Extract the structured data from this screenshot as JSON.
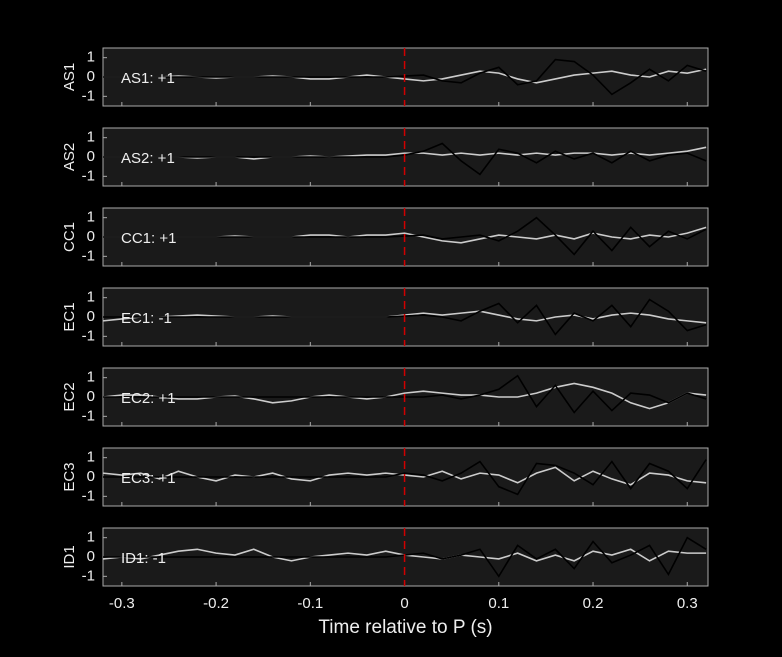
{
  "chart_data": [
    {
      "type": "line",
      "ylabel": "AS1",
      "annotation": "AS1: +1",
      "annotation_color": "#b00000",
      "vline": 0,
      "vline_color": "#d00000",
      "xlim": [
        -0.32,
        0.322
      ],
      "ylim": [
        -1.5,
        1.5
      ],
      "yticks": [
        -1,
        0,
        1
      ],
      "x": [
        -0.32,
        -0.3,
        -0.28,
        -0.26,
        -0.24,
        -0.22,
        -0.2,
        -0.18,
        -0.16,
        -0.14,
        -0.12,
        -0.1,
        -0.08,
        -0.06,
        -0.04,
        -0.02,
        0,
        0.02,
        0.04,
        0.06,
        0.08,
        0.1,
        0.12,
        0.14,
        0.16,
        0.18,
        0.2,
        0.22,
        0.24,
        0.26,
        0.28,
        0.3,
        0.32
      ],
      "series": [
        {
          "color": "#cccccc",
          "values": [
            0,
            0,
            0,
            0,
            0.05,
            0,
            -0.05,
            0,
            0,
            0.05,
            0,
            -0.1,
            -0.1,
            0,
            0.1,
            0,
            -0.1,
            -0.2,
            -0.1,
            0.1,
            0.3,
            0.2,
            -0.1,
            -0.3,
            -0.1,
            0.1,
            0.2,
            0.3,
            0.1,
            0,
            0.3,
            0.2,
            0.4
          ]
        },
        {
          "color": "#000000",
          "values": [
            0,
            0,
            0,
            0,
            0,
            0,
            0,
            0,
            0,
            0,
            0,
            0,
            0,
            0,
            0,
            0,
            0.05,
            0.1,
            -0.2,
            -0.3,
            0.2,
            0.5,
            -0.4,
            -0.2,
            0.9,
            0.8,
            0.1,
            -0.9,
            -0.3,
            0.4,
            -0.2,
            0.6,
            0.3
          ]
        }
      ]
    },
    {
      "type": "line",
      "ylabel": "AS2",
      "annotation": "AS2: +1",
      "annotation_color": "#b00000",
      "vline": 0,
      "vline_color": "#d00000",
      "xlim": [
        -0.32,
        0.322
      ],
      "ylim": [
        -1.5,
        1.5
      ],
      "yticks": [
        -1,
        0,
        1
      ],
      "x": [
        -0.32,
        -0.3,
        -0.28,
        -0.26,
        -0.24,
        -0.22,
        -0.2,
        -0.18,
        -0.16,
        -0.14,
        -0.12,
        -0.1,
        -0.08,
        -0.06,
        -0.04,
        -0.02,
        0,
        0.02,
        0.04,
        0.06,
        0.08,
        0.1,
        0.12,
        0.14,
        0.16,
        0.18,
        0.2,
        0.22,
        0.24,
        0.26,
        0.28,
        0.3,
        0.32
      ],
      "series": [
        {
          "color": "#cccccc",
          "values": [
            0,
            0,
            0,
            0,
            0,
            -0.05,
            0,
            0,
            -0.1,
            0,
            0,
            0.05,
            0,
            0.05,
            0.1,
            0.1,
            0.2,
            0.2,
            0.1,
            0.2,
            0.1,
            0.2,
            0.1,
            0.2,
            0.1,
            0.2,
            0.2,
            0.1,
            0.2,
            0.1,
            0.2,
            0.3,
            0.5
          ]
        },
        {
          "color": "#000000",
          "values": [
            0,
            0,
            0,
            0,
            0,
            0,
            0,
            0,
            0,
            0,
            0,
            0,
            0,
            0,
            0,
            0,
            0.1,
            0.3,
            0.7,
            -0.2,
            -0.9,
            0.4,
            0.2,
            -0.3,
            0.3,
            -0.1,
            0.2,
            -0.3,
            0.3,
            -0.2,
            0.1,
            0.2,
            -0.2
          ]
        }
      ]
    },
    {
      "type": "line",
      "ylabel": "CC1",
      "annotation": "CC1: +1",
      "annotation_color": "#b00000",
      "vline": 0,
      "vline_color": "#d00000",
      "xlim": [
        -0.32,
        0.322
      ],
      "ylim": [
        -1.5,
        1.5
      ],
      "yticks": [
        -1,
        0,
        1
      ],
      "x": [
        -0.32,
        -0.3,
        -0.28,
        -0.26,
        -0.24,
        -0.22,
        -0.2,
        -0.18,
        -0.16,
        -0.14,
        -0.12,
        -0.1,
        -0.08,
        -0.06,
        -0.04,
        -0.02,
        0,
        0.02,
        0.04,
        0.06,
        0.08,
        0.1,
        0.12,
        0.14,
        0.16,
        0.18,
        0.2,
        0.22,
        0.24,
        0.26,
        0.28,
        0.3,
        0.32
      ],
      "series": [
        {
          "color": "#cccccc",
          "values": [
            0,
            0,
            0,
            0,
            0,
            0,
            0,
            0.05,
            0,
            0,
            0,
            0.1,
            0.1,
            0,
            0.1,
            0.1,
            0.2,
            0,
            -0.2,
            -0.3,
            -0.1,
            0.1,
            0,
            -0.1,
            0.1,
            -0.1,
            0.2,
            0,
            -0.1,
            0.1,
            0,
            0.2,
            0.5
          ]
        },
        {
          "color": "#000000",
          "values": [
            0,
            0,
            0,
            0,
            0,
            0,
            0,
            0,
            0,
            0,
            0,
            0,
            0,
            0,
            0,
            0,
            0.05,
            0.1,
            -0.1,
            0,
            0.1,
            -0.2,
            0.3,
            1.0,
            0.1,
            -0.9,
            0.3,
            -0.7,
            0.5,
            -0.5,
            0.3,
            -0.1,
            0.4
          ]
        }
      ]
    },
    {
      "type": "line",
      "ylabel": "EC1",
      "annotation": "EC1: -1",
      "annotation_color": "#0000a0",
      "vline": 0,
      "vline_color": "#d00000",
      "xlim": [
        -0.32,
        0.322
      ],
      "ylim": [
        -1.5,
        1.5
      ],
      "yticks": [
        -1,
        0,
        1
      ],
      "x": [
        -0.32,
        -0.3,
        -0.28,
        -0.26,
        -0.24,
        -0.22,
        -0.2,
        -0.18,
        -0.16,
        -0.14,
        -0.12,
        -0.1,
        -0.08,
        -0.06,
        -0.04,
        -0.02,
        0,
        0.02,
        0.04,
        0.06,
        0.08,
        0.1,
        0.12,
        0.14,
        0.16,
        0.18,
        0.2,
        0.22,
        0.24,
        0.26,
        0.28,
        0.3,
        0.32
      ],
      "series": [
        {
          "color": "#cccccc",
          "values": [
            -0.2,
            -0.1,
            0,
            0,
            0.05,
            0.1,
            0.05,
            0,
            0,
            0.05,
            0,
            0,
            0,
            0,
            0,
            0,
            0.1,
            0.2,
            0.1,
            0.2,
            0.3,
            0.1,
            -0.1,
            -0.2,
            0,
            0.1,
            -0.1,
            0.1,
            0.2,
            0.1,
            -0.1,
            -0.2,
            -0.3
          ]
        },
        {
          "color": "#000000",
          "values": [
            0,
            0,
            0,
            0,
            0,
            0,
            0,
            0,
            0,
            0,
            0,
            0,
            0,
            0,
            0,
            0,
            0.05,
            0.1,
            0,
            -0.2,
            0.3,
            0.7,
            -0.3,
            0.6,
            -0.9,
            0.2,
            -0.2,
            0.6,
            -0.5,
            0.9,
            0.3,
            -0.7,
            -0.4
          ]
        }
      ]
    },
    {
      "type": "line",
      "ylabel": "EC2",
      "annotation": "EC2: +1",
      "annotation_color": "#b00000",
      "vline": 0,
      "vline_color": "#d00000",
      "xlim": [
        -0.32,
        0.322
      ],
      "ylim": [
        -1.5,
        1.5
      ],
      "yticks": [
        -1,
        0,
        1
      ],
      "x": [
        -0.32,
        -0.3,
        -0.28,
        -0.26,
        -0.24,
        -0.22,
        -0.2,
        -0.18,
        -0.16,
        -0.14,
        -0.12,
        -0.1,
        -0.08,
        -0.06,
        -0.04,
        -0.02,
        0,
        0.02,
        0.04,
        0.06,
        0.08,
        0.1,
        0.12,
        0.14,
        0.16,
        0.18,
        0.2,
        0.22,
        0.24,
        0.26,
        0.28,
        0.3,
        0.32
      ],
      "series": [
        {
          "color": "#cccccc",
          "values": [
            0,
            0.1,
            0.1,
            0,
            -0.1,
            -0.1,
            0,
            0.05,
            -0.1,
            -0.3,
            -0.2,
            0,
            0.1,
            0,
            -0.1,
            0,
            0.2,
            0.3,
            0.2,
            0.1,
            0.1,
            0,
            0,
            0.2,
            0.5,
            0.7,
            0.5,
            0.2,
            -0.3,
            -0.6,
            -0.3,
            0.2,
            0.1
          ]
        },
        {
          "color": "#000000",
          "values": [
            0,
            0,
            0,
            0,
            0,
            0,
            0,
            0,
            0,
            0,
            0,
            0,
            0,
            0,
            0,
            0,
            0,
            0,
            0.1,
            -0.1,
            0.1,
            0.4,
            1.1,
            -0.5,
            0.6,
            -0.8,
            0.3,
            -0.7,
            0.2,
            0.1,
            -0.3,
            0.2,
            -0.1
          ]
        }
      ]
    },
    {
      "type": "line",
      "ylabel": "EC3",
      "annotation": "EC3: +1",
      "annotation_color": "#b00000",
      "vline": 0,
      "vline_color": "#d00000",
      "xlim": [
        -0.32,
        0.322
      ],
      "ylim": [
        -1.5,
        1.5
      ],
      "yticks": [
        -1,
        0,
        1
      ],
      "x": [
        -0.32,
        -0.3,
        -0.28,
        -0.26,
        -0.24,
        -0.22,
        -0.2,
        -0.18,
        -0.16,
        -0.14,
        -0.12,
        -0.1,
        -0.08,
        -0.06,
        -0.04,
        -0.02,
        0,
        0.02,
        0.04,
        0.06,
        0.08,
        0.1,
        0.12,
        0.14,
        0.16,
        0.18,
        0.2,
        0.22,
        0.24,
        0.26,
        0.28,
        0.3,
        0.32
      ],
      "series": [
        {
          "color": "#cccccc",
          "values": [
            0.2,
            0.1,
            0.2,
            -0.1,
            0.3,
            0,
            -0.2,
            0.1,
            0,
            0.2,
            -0.1,
            -0.2,
            0.1,
            0.2,
            0.1,
            0.2,
            0.1,
            0,
            0.3,
            -0.1,
            0.2,
            0.1,
            -0.3,
            0.2,
            0.5,
            -0.2,
            0.3,
            -0.1,
            -0.4,
            0.2,
            0.1,
            -0.2,
            -0.3
          ]
        },
        {
          "color": "#000000",
          "values": [
            0,
            0,
            0,
            0,
            0,
            0,
            0,
            0,
            0,
            0,
            0,
            0,
            0,
            0,
            0,
            0,
            0.2,
            0.1,
            -0.2,
            0.2,
            0.8,
            -0.5,
            -0.9,
            0.7,
            0.6,
            0.2,
            -0.4,
            0.8,
            -0.6,
            0.7,
            0.3,
            -0.6,
            0.9
          ]
        }
      ]
    },
    {
      "type": "line",
      "ylabel": "ID1",
      "annotation": "ID1: -1",
      "annotation_color": "#0000a0",
      "vline": 0,
      "vline_color": "#d00000",
      "xlabel": "Time relative to P (s)",
      "xlim": [
        -0.32,
        0.322
      ],
      "ylim": [
        -1.5,
        1.5
      ],
      "yticks": [
        -1,
        0,
        1
      ],
      "xticks": [
        -0.3,
        -0.2,
        -0.1,
        0,
        0.1,
        0.2,
        0.3
      ],
      "x": [
        -0.32,
        -0.3,
        -0.28,
        -0.26,
        -0.24,
        -0.22,
        -0.2,
        -0.18,
        -0.16,
        -0.14,
        -0.12,
        -0.1,
        -0.08,
        -0.06,
        -0.04,
        -0.02,
        0,
        0.02,
        0.04,
        0.06,
        0.08,
        0.1,
        0.12,
        0.14,
        0.16,
        0.18,
        0.2,
        0.22,
        0.24,
        0.26,
        0.28,
        0.3,
        0.32
      ],
      "series": [
        {
          "color": "#cccccc",
          "values": [
            -0.1,
            0,
            -0.1,
            0.1,
            0.3,
            0.4,
            0.2,
            0.1,
            0.4,
            0,
            -0.2,
            0,
            0.1,
            0.2,
            0.1,
            0.3,
            0.1,
            0,
            -0.1,
            0.1,
            0,
            -0.1,
            0.2,
            -0.2,
            0.1,
            -0.2,
            0.3,
            0.1,
            0.4,
            -0.2,
            0.3,
            0.2,
            0.2
          ]
        },
        {
          "color": "#000000",
          "values": [
            0,
            0,
            0,
            0,
            0,
            0,
            0,
            0,
            0,
            0,
            0,
            0,
            0,
            0,
            0,
            0,
            0.1,
            0.2,
            -0.1,
            0.1,
            0.4,
            -1.0,
            0.6,
            -0.1,
            0.4,
            -0.6,
            0.8,
            -0.3,
            0.1,
            0.6,
            -0.9,
            1.0,
            0.4
          ]
        }
      ]
    }
  ]
}
